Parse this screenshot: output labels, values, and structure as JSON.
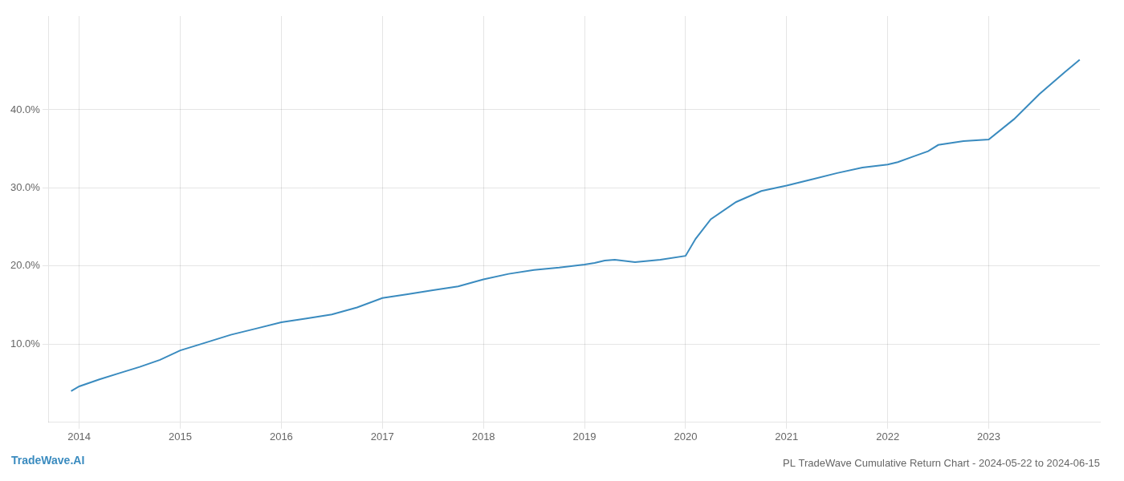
{
  "chart_data": {
    "type": "line",
    "title": "PL TradeWave Cumulative Return Chart - 2024-05-22 to 2024-06-15",
    "annotations": [
      {
        "text": "TradeWave.AI",
        "color": "#3a8bbf"
      }
    ],
    "x": [
      2013.92,
      2014.0,
      2014.2,
      2014.4,
      2014.6,
      2014.8,
      2015.0,
      2015.2,
      2015.5,
      2015.75,
      2016.0,
      2016.25,
      2016.5,
      2016.75,
      2017.0,
      2017.25,
      2017.5,
      2017.75,
      2018.0,
      2018.25,
      2018.5,
      2018.75,
      2019.0,
      2019.1,
      2019.2,
      2019.3,
      2019.5,
      2019.75,
      2020.0,
      2020.1,
      2020.25,
      2020.5,
      2020.75,
      2021.0,
      2021.25,
      2021.5,
      2021.75,
      2022.0,
      2022.1,
      2022.25,
      2022.4,
      2022.5,
      2022.75,
      2023.0,
      2023.25,
      2023.5,
      2023.75,
      2023.9
    ],
    "values": [
      0.04,
      0.046,
      0.055,
      0.063,
      0.071,
      0.08,
      0.092,
      0.1,
      0.112,
      0.12,
      0.128,
      0.133,
      0.138,
      0.147,
      0.159,
      0.164,
      0.169,
      0.174,
      0.183,
      0.19,
      0.195,
      0.198,
      0.202,
      0.204,
      0.207,
      0.208,
      0.205,
      0.208,
      0.213,
      0.235,
      0.26,
      0.282,
      0.296,
      0.303,
      0.311,
      0.319,
      0.326,
      0.33,
      0.333,
      0.34,
      0.347,
      0.355,
      0.36,
      0.362,
      0.388,
      0.42,
      0.448,
      0.464
    ],
    "color": "#3a8bbf",
    "xlim": [
      2013.7,
      2024.1
    ],
    "ylim": [
      0.0,
      0.52
    ],
    "xticks": [
      2014,
      2015,
      2016,
      2017,
      2018,
      2019,
      2020,
      2021,
      2022,
      2023
    ],
    "yticks": [
      {
        "value": 0.1,
        "label": "10.0%"
      },
      {
        "value": 0.2,
        "label": "20.0%"
      },
      {
        "value": 0.3,
        "label": "30.0%"
      },
      {
        "value": 0.4,
        "label": "40.0%"
      }
    ],
    "grid": true
  }
}
